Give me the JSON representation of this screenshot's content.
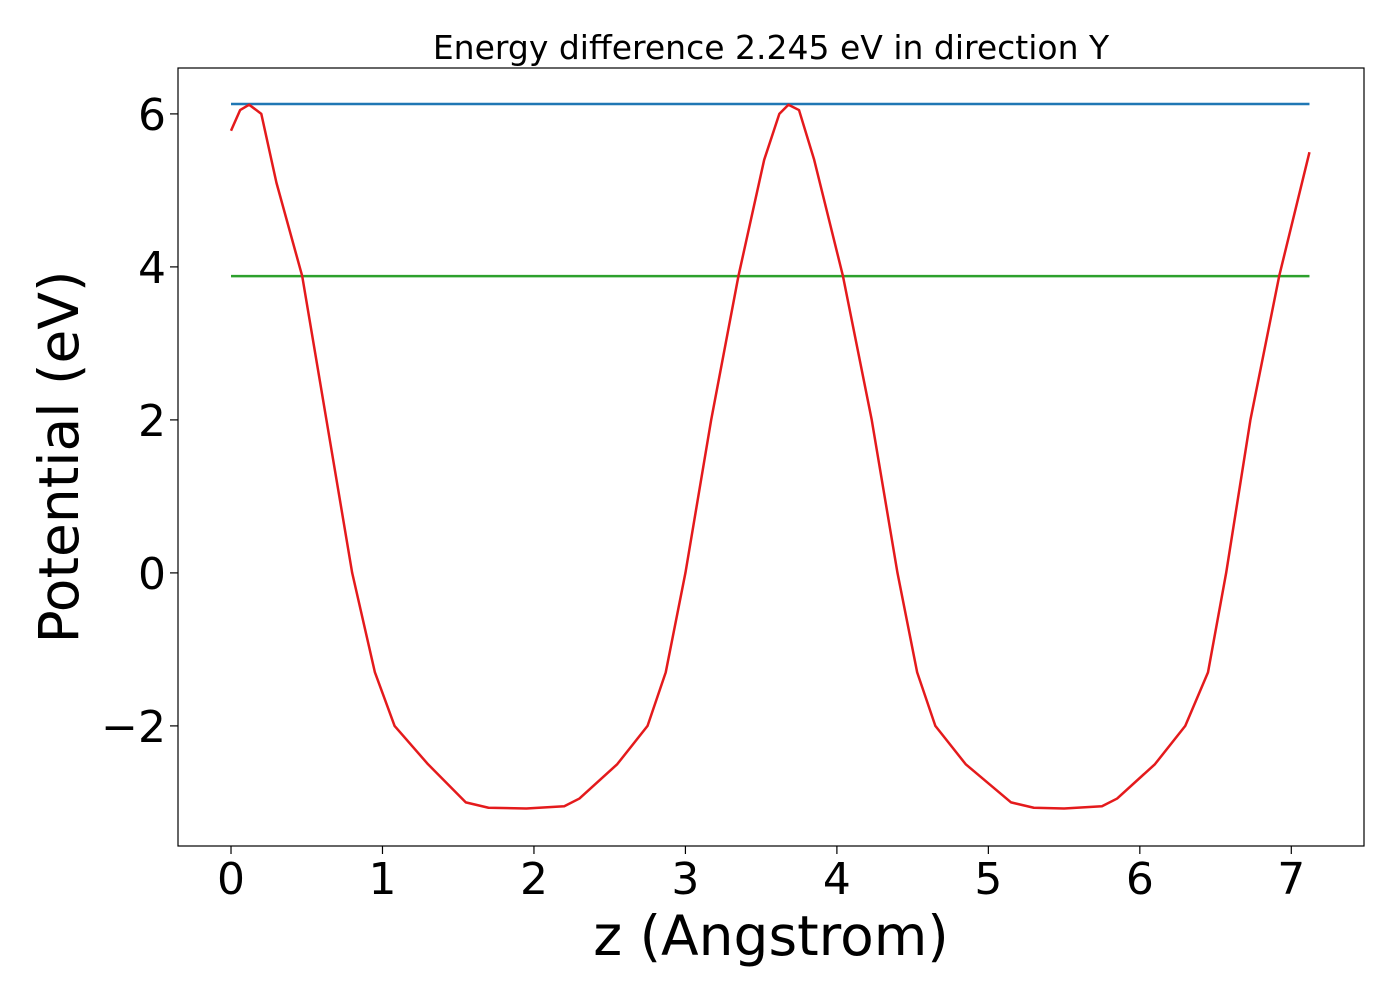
{
  "chart_data": {
    "type": "line",
    "title": "Energy difference 2.245 eV in direction Y",
    "xlabel": "z (Angstrom)",
    "ylabel": "Potential (eV)",
    "xlim": [
      -0.35,
      7.48
    ],
    "ylim": [
      -3.57,
      6.6
    ],
    "xticks": [
      0,
      1,
      2,
      3,
      4,
      5,
      6,
      7
    ],
    "yticks": [
      {
        "value": -2,
        "label": "−2"
      },
      0,
      2,
      4,
      6
    ],
    "series": [
      {
        "color": "#1f77b4",
        "x": [
          0,
          7.12
        ],
        "values": [
          6.13,
          6.13
        ]
      },
      {
        "color": "#2ca02c",
        "x": [
          0,
          7.12
        ],
        "values": [
          3.88,
          3.88
        ]
      },
      {
        "color": "#e41a1c",
        "x": [
          0,
          0.06,
          0.12,
          0.2,
          0.3,
          0.47,
          0.63,
          0.8,
          0.95,
          1.08,
          1.3,
          1.55,
          1.7,
          1.95,
          2.2,
          2.3,
          2.55,
          2.75,
          2.87,
          3.0,
          3.17,
          3.35,
          3.52,
          3.62,
          3.68,
          3.75,
          3.85,
          4.04,
          4.23,
          4.4,
          4.53,
          4.65,
          4.85,
          5.15,
          5.3,
          5.5,
          5.75,
          5.85,
          6.1,
          6.3,
          6.45,
          6.57,
          6.73,
          6.92,
          7.12
        ],
        "values": [
          5.78,
          6.05,
          6.12,
          6.0,
          5.1,
          3.88,
          2.0,
          0,
          -1.3,
          -2.0,
          -2.5,
          -3.0,
          -3.07,
          -3.08,
          -3.05,
          -2.95,
          -2.5,
          -2.0,
          -1.3,
          0,
          2.0,
          3.88,
          5.4,
          6.0,
          6.12,
          6.05,
          5.4,
          3.88,
          2.0,
          0,
          -1.3,
          -2.0,
          -2.5,
          -3.0,
          -3.07,
          -3.08,
          -3.05,
          -2.95,
          -2.5,
          -2.0,
          -1.3,
          0,
          2.0,
          3.88,
          5.5
        ]
      }
    ]
  }
}
